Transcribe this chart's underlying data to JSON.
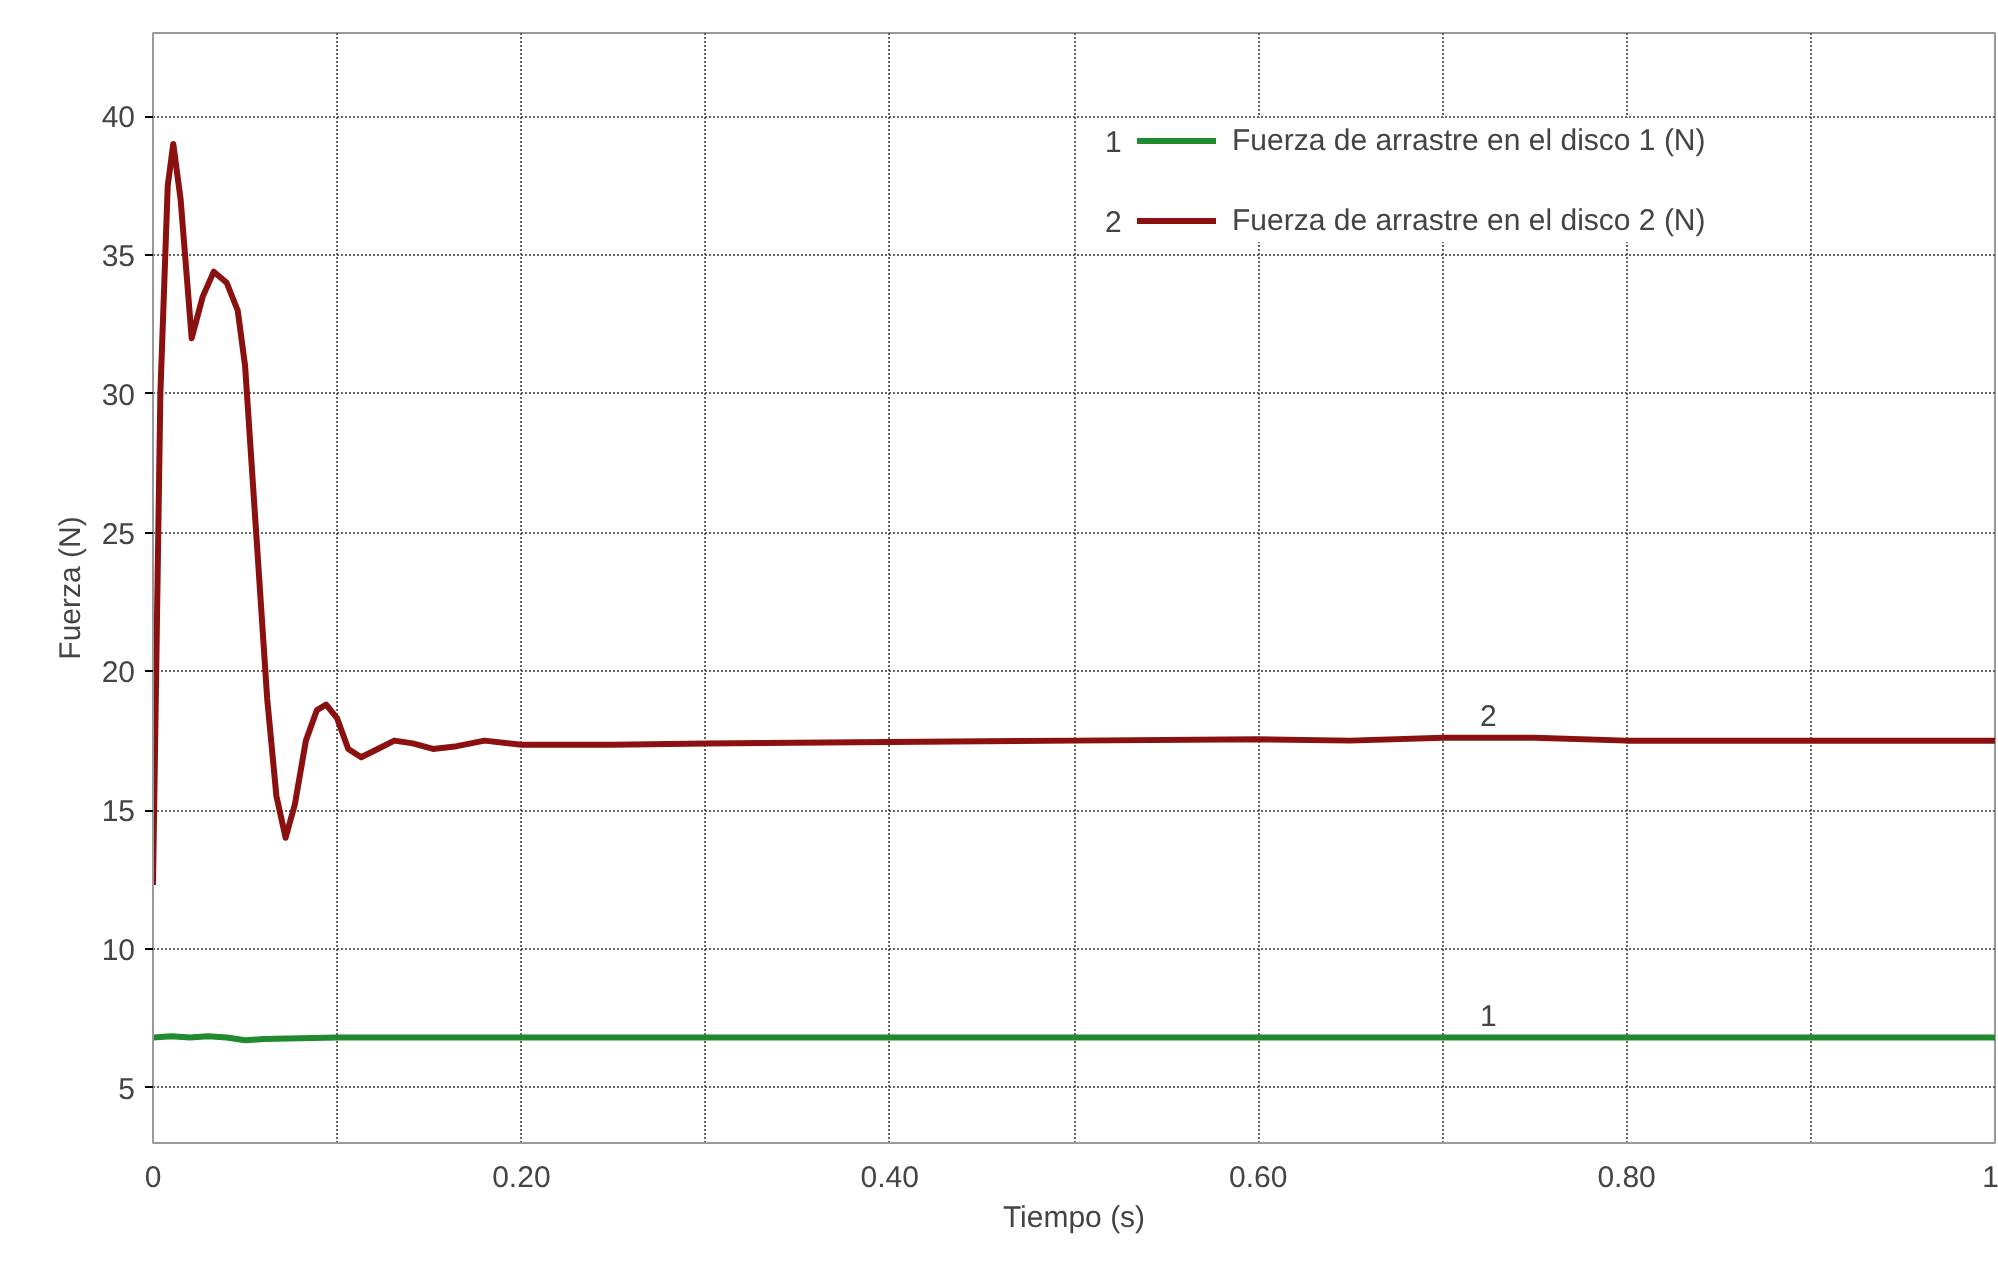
{
  "chart_data": {
    "type": "line",
    "xlabel": "Tiempo (s)",
    "ylabel": "Fuerza (N)",
    "xlim": [
      0,
      1
    ],
    "ylim": [
      3,
      43
    ],
    "xticks": [
      0,
      {
        "value": 0.1,
        "label": null
      },
      {
        "value": 0.2,
        "label": "0.20"
      },
      {
        "value": 0.3,
        "label": null
      },
      {
        "value": 0.4,
        "label": "0.40"
      },
      {
        "value": 0.5,
        "label": null
      },
      {
        "value": 0.6,
        "label": "0.60"
      },
      {
        "value": 0.7,
        "label": null
      },
      {
        "value": 0.8,
        "label": "0.80"
      },
      {
        "value": 0.9,
        "label": null
      },
      1
    ],
    "yticks": [
      5,
      10,
      15,
      20,
      25,
      30,
      35,
      40
    ],
    "grid": true,
    "legend": "top right",
    "marker": "none",
    "line_style": "solid",
    "series": [
      {
        "name": "Fuerza de arrastre en el disco 1 (N)",
        "color": "#1f8a2e",
        "x": [
          0,
          0.01,
          0.02,
          0.03,
          0.04,
          0.05,
          0.06,
          0.1,
          0.3,
          0.5,
          0.7,
          0.9,
          1
        ],
        "values": [
          6.8,
          6.85,
          6.8,
          6.85,
          6.8,
          6.7,
          6.75,
          6.8,
          6.8,
          6.8,
          6.8,
          6.8,
          6.8
        ]
      },
      {
        "name": "Fuerza de arrastre en el disco 2 (N)",
        "color": "#8b1010",
        "x": [
          0,
          0.004,
          0.008,
          0.011,
          0.015,
          0.021,
          0.027,
          0.033,
          0.04,
          0.046,
          0.05,
          0.056,
          0.062,
          0.067,
          0.072,
          0.077,
          0.083,
          0.089,
          0.094,
          0.1,
          0.106,
          0.113,
          0.122,
          0.131,
          0.141,
          0.152,
          0.165,
          0.18,
          0.2,
          0.25,
          0.3,
          0.4,
          0.5,
          0.6,
          0.65,
          0.7,
          0.75,
          0.8,
          0.9,
          1
        ],
        "values": [
          12.3,
          30,
          37.5,
          39,
          37,
          32,
          33.5,
          34.4,
          34,
          33,
          31,
          25,
          19,
          15.5,
          14,
          15.2,
          17.5,
          18.6,
          18.8,
          18.3,
          17.2,
          16.9,
          17.2,
          17.5,
          17.4,
          17.2,
          17.3,
          17.5,
          17.35,
          17.35,
          17.4,
          17.45,
          17.5,
          17.55,
          17.5,
          17.6,
          17.6,
          17.5,
          17.5,
          17.5
        ]
      }
    ],
    "annotations": [
      "1",
      "2"
    ]
  }
}
